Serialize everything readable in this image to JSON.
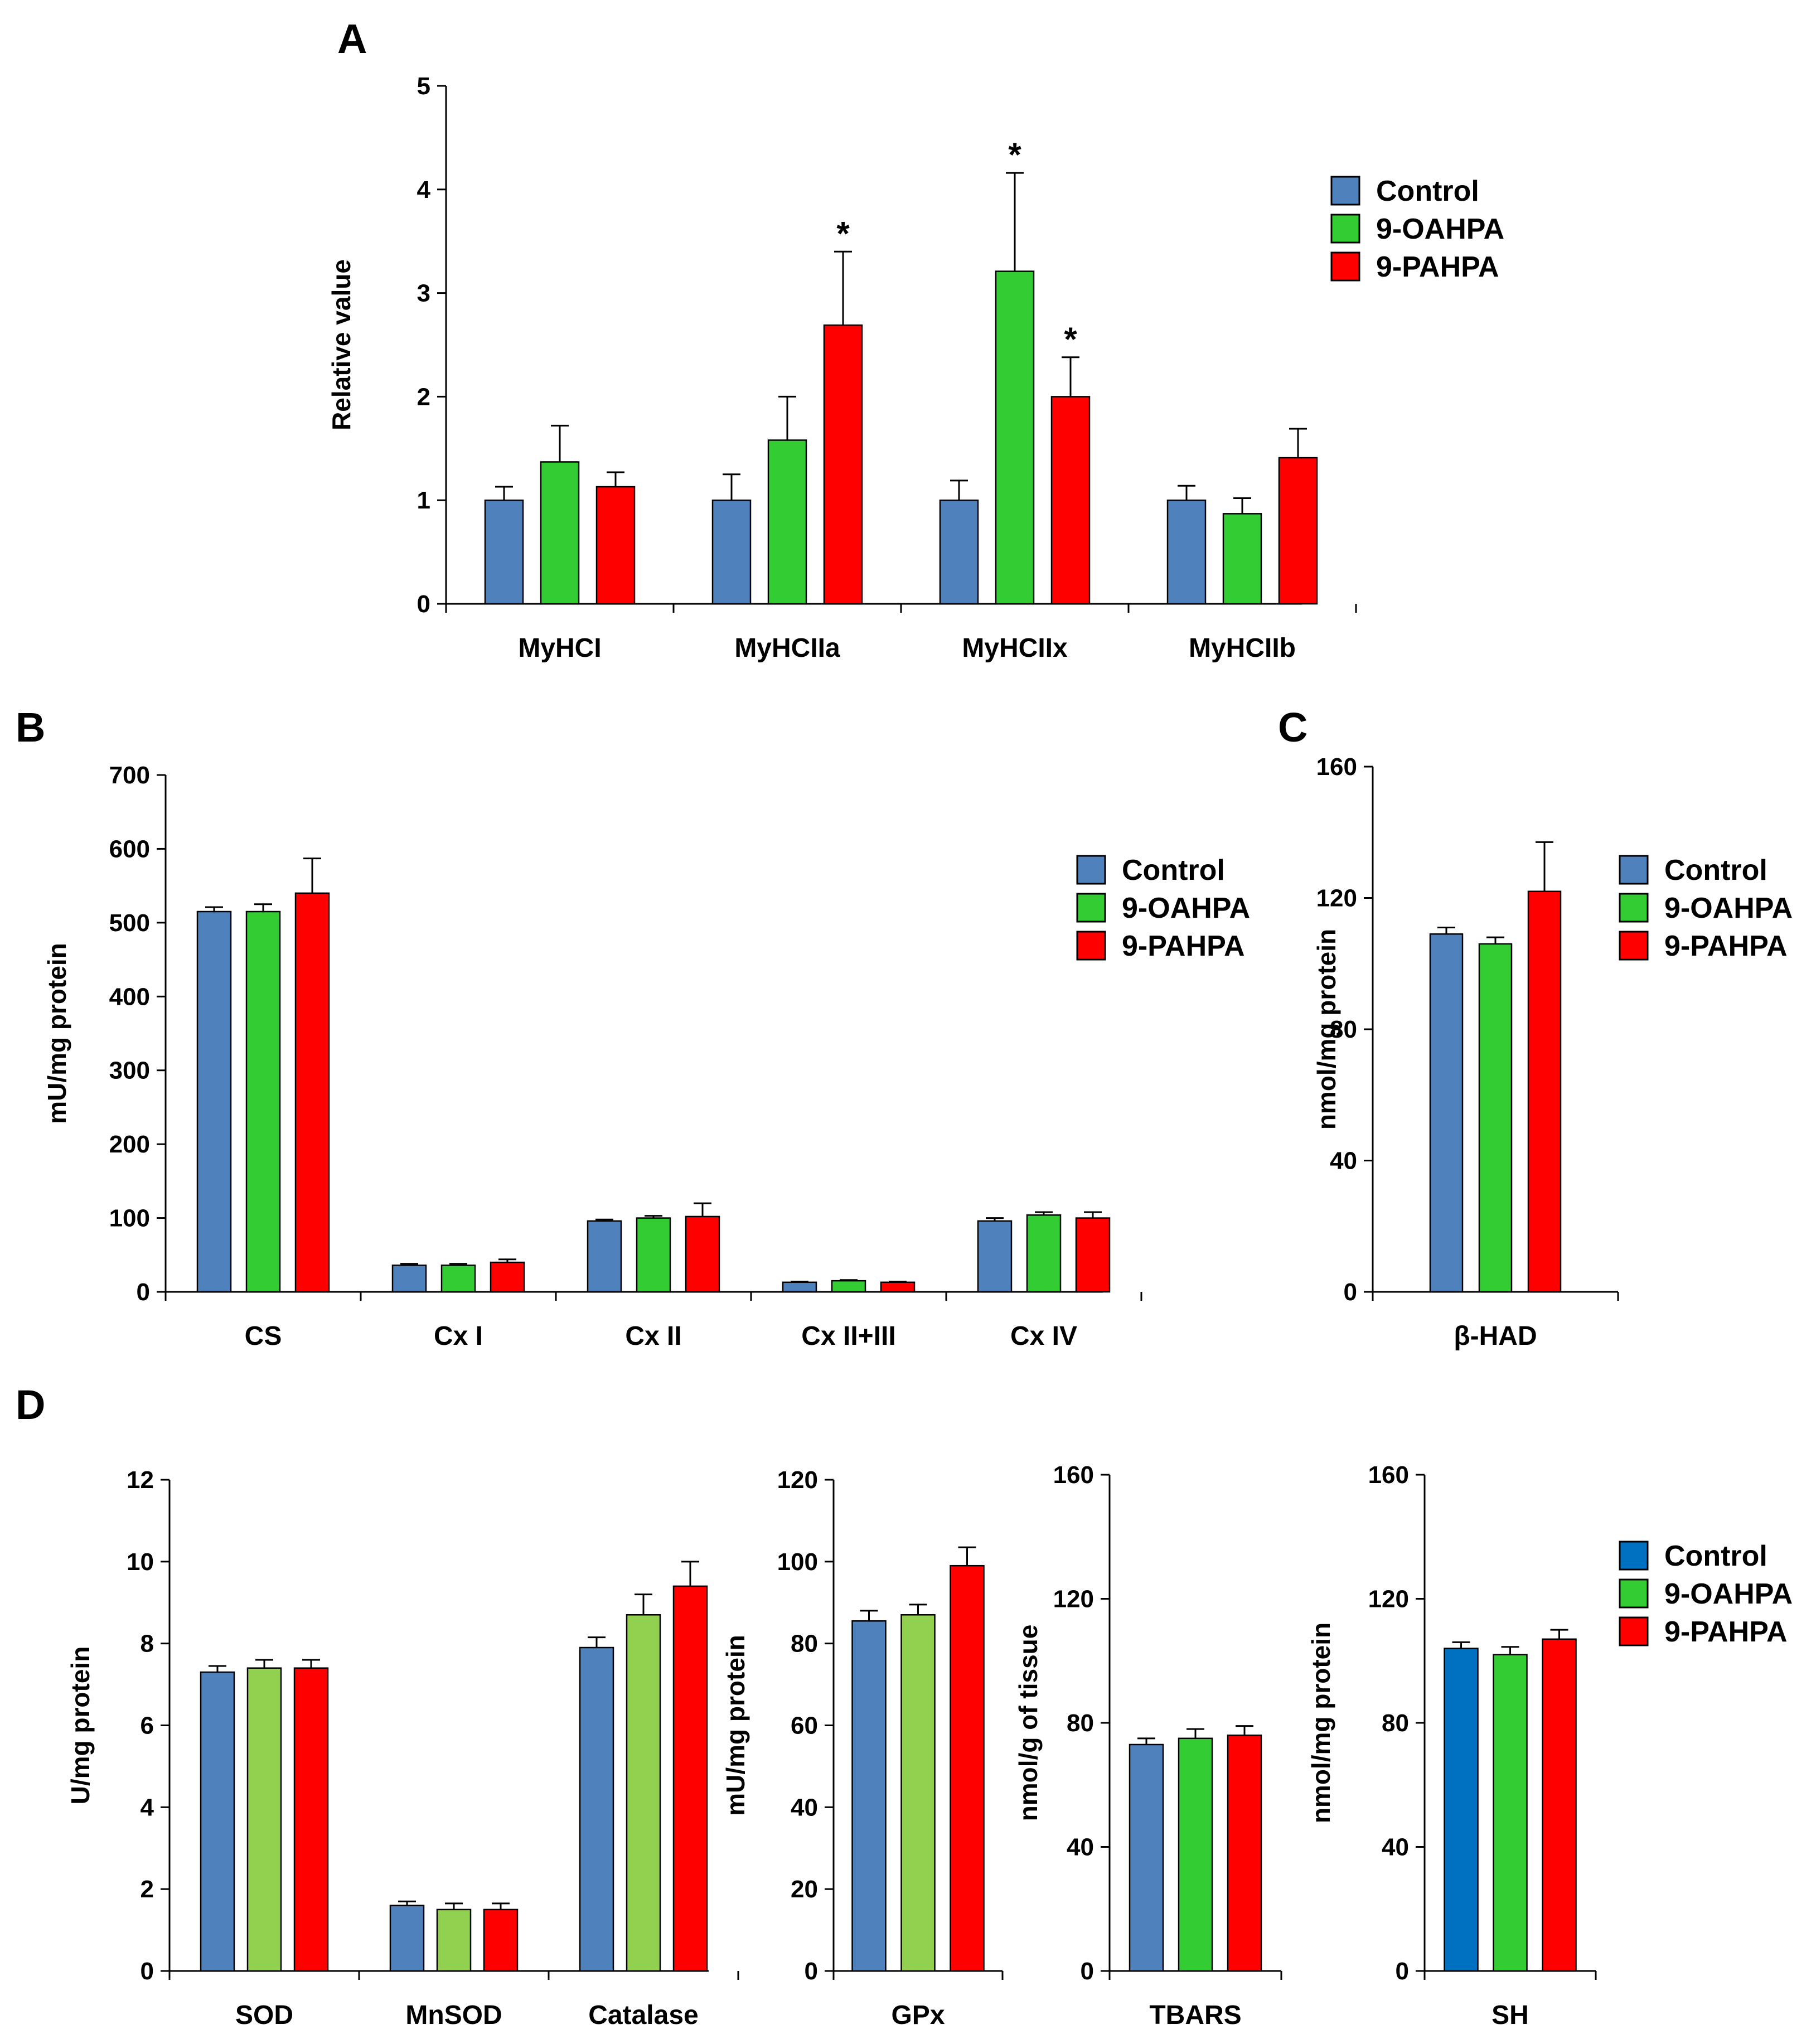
{
  "colors": {
    "Control": "#4f81bd",
    "9-OAHPA": "#33cc33",
    "9-OAHPA_light": "#92d050",
    "9-PAHPA": "#ff0000",
    "Control_dark": "#0070c0"
  },
  "legends": [
    {
      "id": "legend-a",
      "entries": [
        "Control",
        "9-OAHPA",
        "9-PAHPA"
      ]
    },
    {
      "id": "legend-b",
      "entries": [
        "Control",
        "9-OAHPA",
        "9-PAHPA"
      ]
    },
    {
      "id": "legend-c",
      "entries": [
        "Control",
        "9-OAHPA",
        "9-PAHPA"
      ]
    },
    {
      "id": "legend-d",
      "entries": [
        "Control",
        "9-OAHPA",
        "9-PAHPA"
      ]
    }
  ],
  "chart_data": [
    {
      "id": "A",
      "panel_label": "A",
      "type": "bar",
      "ylabel": "Relative value",
      "ylim": [
        0,
        5
      ],
      "yticks": [
        0,
        1,
        2,
        3,
        4,
        5
      ],
      "categories": [
        "MyHCI",
        "MyHCIIa",
        "MyHCIIx",
        "MyHCIIb"
      ],
      "series": [
        {
          "name": "Control",
          "color": "#4f81bd",
          "values": [
            1.0,
            1.0,
            1.0,
            1.0
          ],
          "errors": [
            0.13,
            0.25,
            0.19,
            0.14
          ],
          "sig": [
            "",
            "",
            "",
            ""
          ]
        },
        {
          "name": "9-OAHPA",
          "color": "#33cc33",
          "values": [
            1.37,
            1.58,
            3.21,
            0.87
          ],
          "errors": [
            0.35,
            0.42,
            0.95,
            0.15
          ],
          "sig": [
            "",
            "",
            "*",
            ""
          ]
        },
        {
          "name": "9-PAHPA",
          "color": "#ff0000",
          "values": [
            1.13,
            2.69,
            2.0,
            1.41
          ],
          "errors": [
            0.14,
            0.71,
            0.38,
            0.28
          ],
          "sig": [
            "",
            "*",
            "*",
            ""
          ]
        }
      ]
    },
    {
      "id": "B",
      "panel_label": "B",
      "type": "bar",
      "ylabel": "mU/mg protein",
      "ylim": [
        0,
        700
      ],
      "yticks": [
        0,
        100,
        200,
        300,
        400,
        500,
        600,
        700
      ],
      "categories": [
        "CS",
        "Cx I",
        "Cx II",
        "Cx II+III",
        "Cx IV"
      ],
      "series": [
        {
          "name": "Control",
          "color": "#4f81bd",
          "values": [
            515,
            36,
            96,
            13,
            96
          ],
          "errors": [
            6,
            2,
            2,
            1,
            4
          ]
        },
        {
          "name": "9-OAHPA",
          "color": "#33cc33",
          "values": [
            515,
            36,
            100,
            15,
            104
          ],
          "errors": [
            10,
            2,
            3,
            1,
            4
          ]
        },
        {
          "name": "9-PAHPA",
          "color": "#ff0000",
          "values": [
            540,
            40,
            102,
            13,
            100
          ],
          "errors": [
            47,
            4,
            18,
            1,
            8
          ]
        }
      ]
    },
    {
      "id": "C",
      "panel_label": "C",
      "type": "bar",
      "ylabel": "nmol/mg protein",
      "ylim": [
        0,
        160
      ],
      "yticks": [
        0,
        40,
        80,
        120,
        160
      ],
      "categories": [
        "β-HAD"
      ],
      "series": [
        {
          "name": "Control",
          "color": "#4f81bd",
          "values": [
            109
          ],
          "errors": [
            2
          ]
        },
        {
          "name": "9-OAHPA",
          "color": "#33cc33",
          "values": [
            106
          ],
          "errors": [
            2
          ]
        },
        {
          "name": "9-PAHPA",
          "color": "#ff0000",
          "values": [
            122
          ],
          "errors": [
            15
          ]
        }
      ]
    },
    {
      "id": "D1",
      "panel_label": "D",
      "type": "bar",
      "ylabel": "U/mg protein",
      "ylim": [
        0,
        12
      ],
      "yticks": [
        0,
        2,
        4,
        6,
        8,
        10,
        12
      ],
      "categories": [
        "SOD",
        "MnSOD",
        "Catalase"
      ],
      "series": [
        {
          "name": "Control",
          "color": "#4f81bd",
          "values": [
            7.3,
            1.6,
            7.9
          ],
          "errors": [
            0.15,
            0.1,
            0.25
          ]
        },
        {
          "name": "9-OAHPA",
          "color": "#92d050",
          "values": [
            7.4,
            1.5,
            8.7
          ],
          "errors": [
            0.2,
            0.15,
            0.5
          ]
        },
        {
          "name": "9-PAHPA",
          "color": "#ff0000",
          "values": [
            7.4,
            1.5,
            9.4
          ],
          "errors": [
            0.2,
            0.15,
            0.6
          ]
        }
      ]
    },
    {
      "id": "D2",
      "type": "bar",
      "ylabel": "mU/mg protein",
      "ylim": [
        0,
        120
      ],
      "yticks": [
        0,
        20,
        40,
        60,
        80,
        100,
        120
      ],
      "categories": [
        "GPx"
      ],
      "series": [
        {
          "name": "Control",
          "color": "#4f81bd",
          "values": [
            85.5
          ],
          "errors": [
            2.5
          ]
        },
        {
          "name": "9-OAHPA",
          "color": "#92d050",
          "values": [
            87
          ],
          "errors": [
            2.5
          ]
        },
        {
          "name": "9-PAHPA",
          "color": "#ff0000",
          "values": [
            99
          ],
          "errors": [
            4.5
          ]
        }
      ]
    },
    {
      "id": "D3",
      "type": "bar",
      "ylabel": "nmol/g of tissue",
      "ylim": [
        0,
        160
      ],
      "yticks": [
        0,
        40,
        80,
        120,
        160
      ],
      "categories": [
        "TBARS"
      ],
      "series": [
        {
          "name": "Control",
          "color": "#4f81bd",
          "values": [
            73
          ],
          "errors": [
            2
          ]
        },
        {
          "name": "9-OAHPA",
          "color": "#33cc33",
          "values": [
            75
          ],
          "errors": [
            3
          ]
        },
        {
          "name": "9-PAHPA",
          "color": "#ff0000",
          "values": [
            76
          ],
          "errors": [
            3
          ]
        }
      ]
    },
    {
      "id": "D4",
      "type": "bar",
      "ylabel": "nmol/mg protein",
      "ylim": [
        0,
        160
      ],
      "yticks": [
        0,
        40,
        80,
        120,
        160
      ],
      "categories": [
        "SH"
      ],
      "series": [
        {
          "name": "Control",
          "color": "#0070c0",
          "values": [
            104
          ],
          "errors": [
            2
          ]
        },
        {
          "name": "9-OAHPA",
          "color": "#33cc33",
          "values": [
            102
          ],
          "errors": [
            2.5
          ]
        },
        {
          "name": "9-PAHPA",
          "color": "#ff0000",
          "values": [
            107
          ],
          "errors": [
            3
          ]
        }
      ]
    }
  ]
}
